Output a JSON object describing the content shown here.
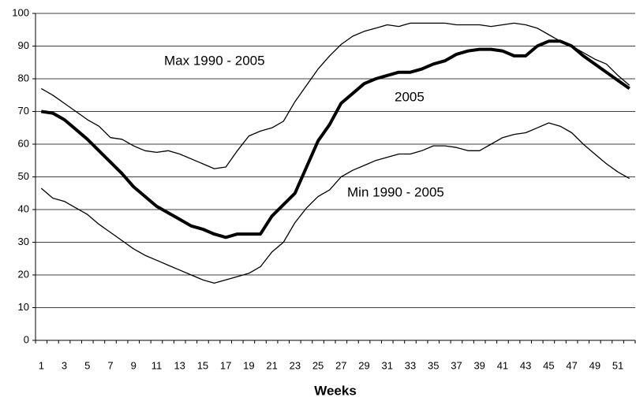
{
  "chart_data": {
    "type": "line",
    "x_label": "Weeks",
    "categories": [
      "1",
      null,
      "3",
      null,
      "5",
      null,
      "7",
      null,
      "9",
      null,
      "11",
      null,
      "13",
      null,
      "15",
      null,
      "17",
      null,
      "19",
      null,
      "21",
      null,
      "23",
      null,
      "25",
      null,
      "27",
      null,
      "29",
      null,
      "31",
      null,
      "33",
      null,
      "35",
      null,
      "37",
      null,
      "39",
      null,
      "41",
      null,
      "43",
      null,
      "45",
      null,
      "47",
      null,
      "49",
      null,
      "51",
      null
    ],
    "series": [
      {
        "name": "Max 1990 - 2005",
        "color": "#000000",
        "line_width": 1.3,
        "values": [
          77,
          75,
          72.5,
          70,
          67.5,
          65.5,
          62,
          61.5,
          59.5,
          58,
          57.5,
          58,
          57,
          55.5,
          54,
          52.5,
          53,
          58,
          62.5,
          64,
          65,
          67,
          73,
          78,
          83,
          87,
          90.5,
          93,
          94.5,
          95.5,
          96.5,
          96,
          97,
          97,
          97,
          97,
          96.5,
          96.5,
          96.5,
          96,
          96.5,
          97,
          96.5,
          95.5,
          93.5,
          91.5,
          90,
          88,
          86,
          84.5,
          81,
          78
        ]
      },
      {
        "name": "2005",
        "color": "#000000",
        "line_width": 4,
        "values": [
          70,
          69.5,
          67.5,
          64.5,
          61.5,
          58,
          54.5,
          51,
          47,
          44,
          41,
          39,
          37,
          35,
          34,
          32.5,
          31.5,
          32.5,
          32.5,
          32.5,
          38,
          41.5,
          45,
          53,
          61,
          66,
          72.5,
          75.5,
          78.5,
          80,
          81,
          82,
          82,
          83,
          84.5,
          85.5,
          87.5,
          88.5,
          89,
          89,
          88.5,
          87,
          87,
          90,
          91.5,
          91.5,
          90,
          87,
          84.5,
          82,
          79.5,
          77
        ]
      },
      {
        "name": "Min 1990 - 2005",
        "color": "#000000",
        "line_width": 1.3,
        "values": [
          46.5,
          43.5,
          42.5,
          40.5,
          38.5,
          35.5,
          33,
          30.5,
          28,
          26,
          24.5,
          23,
          21.5,
          20,
          18.5,
          17.5,
          18.5,
          19.5,
          20.5,
          22.5,
          27,
          30,
          36,
          40.5,
          44,
          46,
          50,
          52,
          53.5,
          55,
          56,
          57,
          57,
          58,
          59.5,
          59.5,
          59,
          58,
          58,
          60,
          62,
          63,
          63.5,
          65,
          66.5,
          65.5,
          63.5,
          60,
          57,
          54,
          51.5,
          49.5
        ]
      }
    ],
    "ylim": [
      0,
      100
    ],
    "yticks": [
      0,
      10,
      20,
      30,
      40,
      50,
      60,
      70,
      80,
      90,
      100
    ],
    "grid": true
  }
}
